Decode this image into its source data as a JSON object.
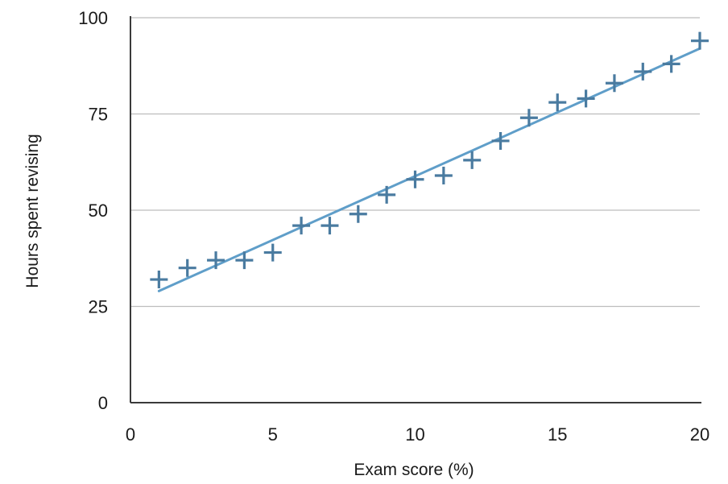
{
  "chart_data": {
    "type": "scatter",
    "title": "",
    "xlabel": "Exam score (%)",
    "ylabel": "Hours spent revising",
    "xlim": [
      0,
      20
    ],
    "ylim": [
      0,
      100
    ],
    "x_ticks": [
      "0",
      "5",
      "10",
      "15",
      "20"
    ],
    "y_ticks": [
      "0",
      "25",
      "50",
      "75",
      "100"
    ],
    "grid": "horizontal",
    "legend": "none",
    "marker": "plus",
    "point_color": "#4a7ba0",
    "trendline_color": "#5f9ec9",
    "series": [
      {
        "x": [
          1,
          2,
          3,
          4,
          5,
          6,
          7,
          8,
          9,
          10,
          11,
          12,
          13,
          14,
          15,
          16,
          17,
          18,
          19,
          20
        ],
        "y": [
          32,
          35,
          37,
          37,
          39,
          46,
          46,
          49,
          54,
          58,
          59,
          63,
          68,
          74,
          78,
          79,
          83,
          86,
          88,
          94
        ]
      }
    ],
    "trendline": {
      "x": [
        1,
        20
      ],
      "y": [
        29,
        92
      ]
    }
  }
}
